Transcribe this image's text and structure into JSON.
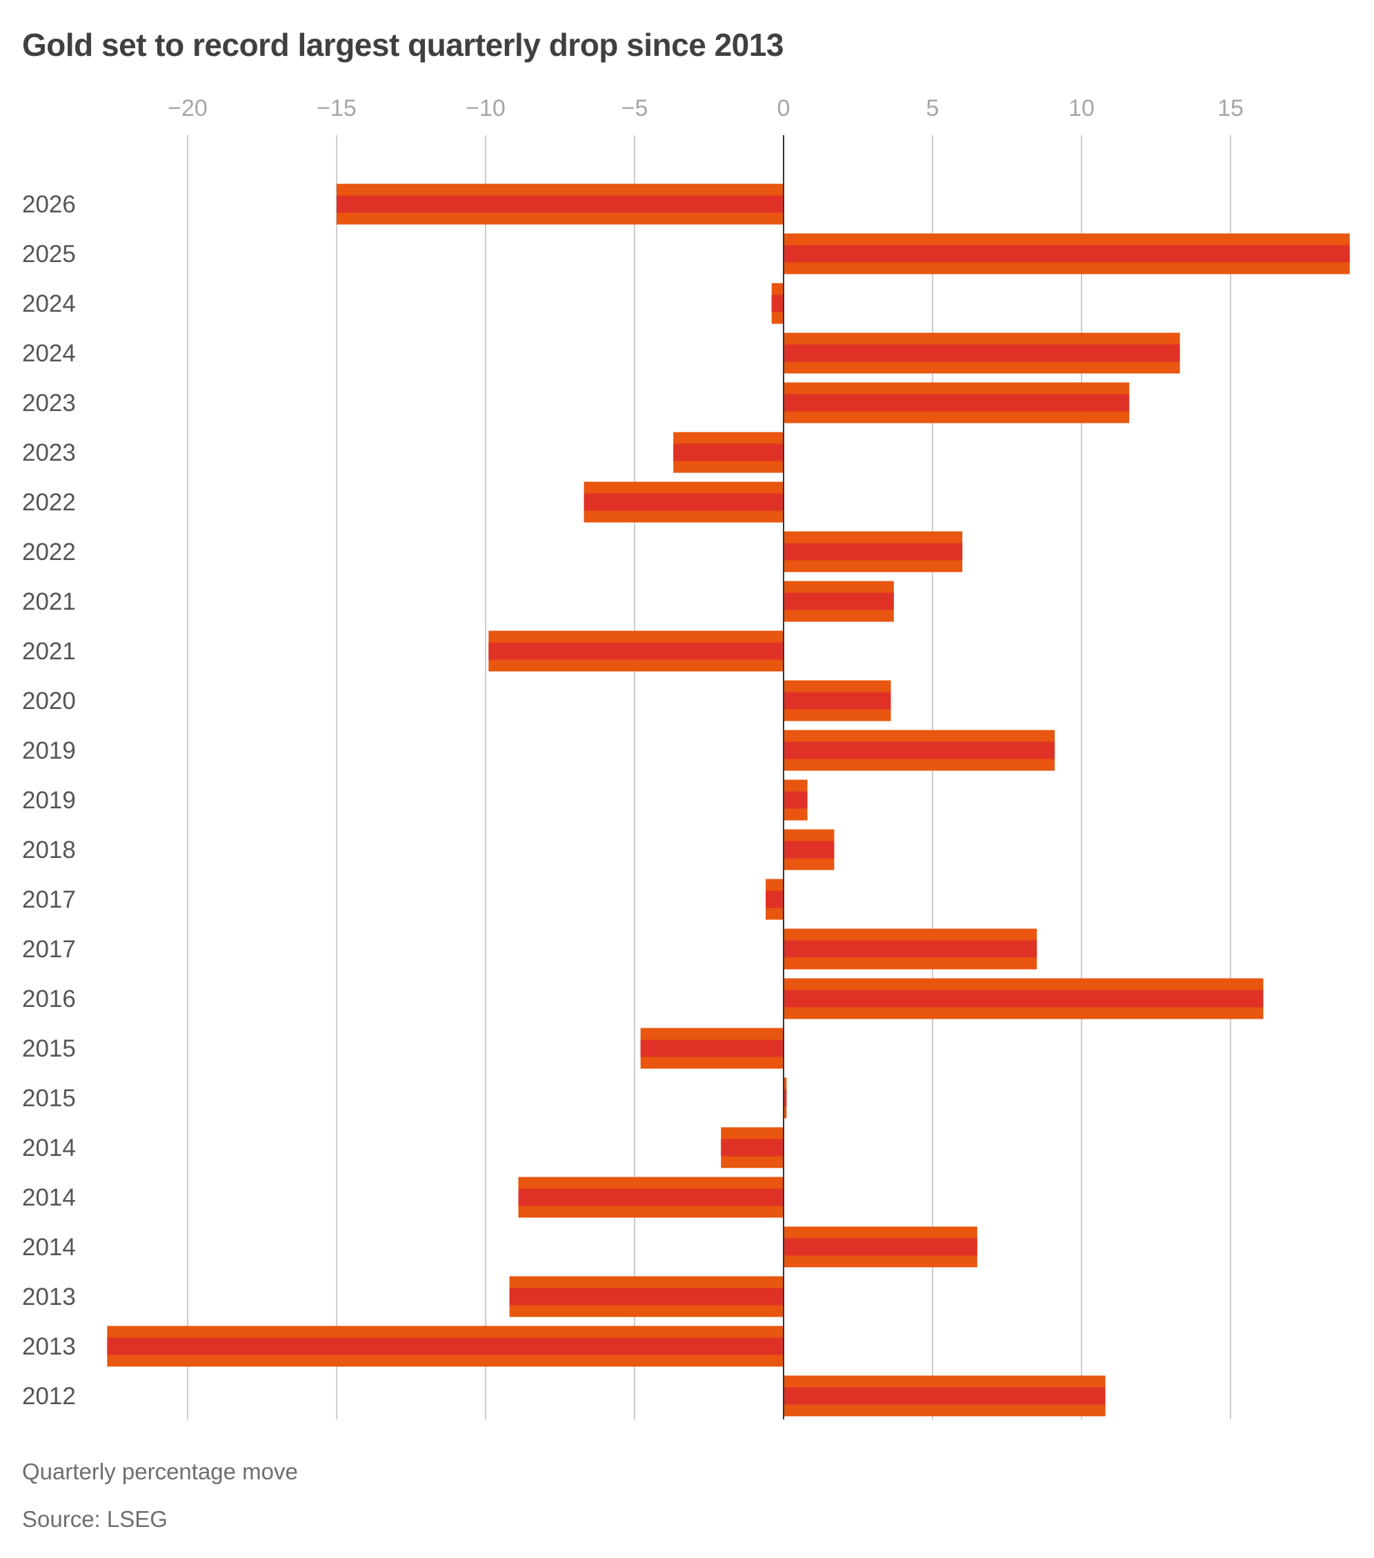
{
  "title": "Gold set to record largest quarterly drop since 2013",
  "note": "Quarterly percentage move",
  "source": "Source: LSEG",
  "colors": {
    "bar_outer": "#e8560f",
    "bar_inner": "#e03127",
    "grid": "#cccccc",
    "zero_line": "#333333"
  },
  "chart_data": {
    "type": "bar",
    "orientation": "horizontal",
    "xlim": [
      -23,
      19
    ],
    "ticks": [
      -20,
      -15,
      -10,
      -5,
      0,
      5,
      10,
      15
    ],
    "tick_labels": [
      "−20",
      "−15",
      "−10",
      "−5",
      "0",
      "5",
      "10",
      "15"
    ],
    "xaxis_position": "top",
    "grid": true,
    "categories": [
      "2026",
      "2025",
      "2024",
      "2024",
      "2023",
      "2023",
      "2022",
      "2022",
      "2021",
      "2021",
      "2020",
      "2019",
      "2019",
      "2018",
      "2017",
      "2017",
      "2016",
      "2015",
      "2015",
      "2014",
      "2014",
      "2014",
      "2013",
      "2013",
      "2012"
    ],
    "values": [
      -15.0,
      19.0,
      -0.4,
      13.3,
      11.6,
      -3.7,
      -6.7,
      6.0,
      3.7,
      -9.9,
      3.6,
      9.1,
      0.8,
      1.7,
      -0.6,
      8.5,
      16.1,
      -4.8,
      0.1,
      -2.1,
      -8.9,
      6.5,
      -9.2,
      -22.7,
      10.8
    ]
  }
}
